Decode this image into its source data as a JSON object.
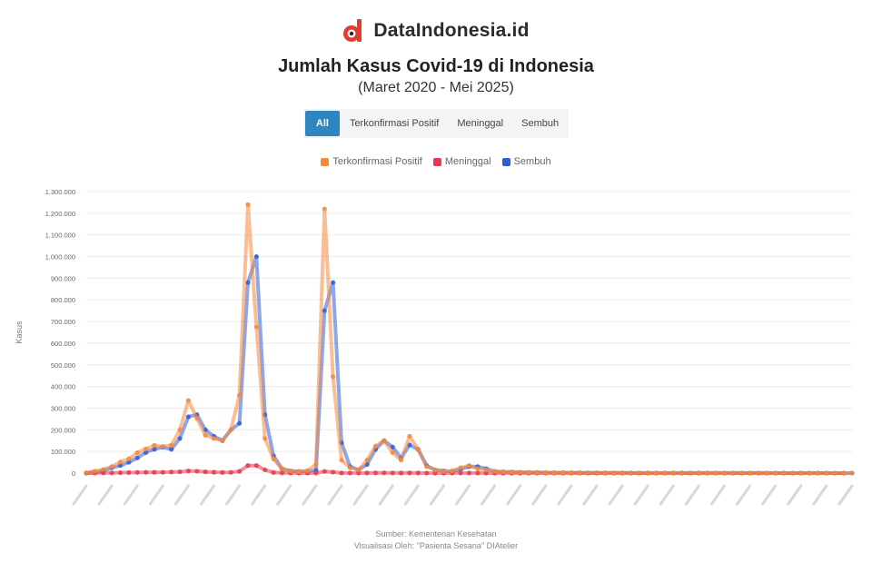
{
  "brand": {
    "name": "DataIndonesia.id",
    "logo_letter": "d",
    "logo_color": "#e23c2f"
  },
  "title": "Jumlah Kasus Covid-19 di Indonesia",
  "subtitle": "(Maret 2020 - Mei 2025)",
  "tabs": [
    {
      "label": "All",
      "active": true
    },
    {
      "label": "Terkonfirmasi Positif",
      "active": false
    },
    {
      "label": "Meninggal",
      "active": false
    },
    {
      "label": "Sembuh",
      "active": false
    }
  ],
  "footer": {
    "source": "Sumber: Kementerian Kesehatan",
    "visual": "Visualisasi Oleh: \"Pasienta Sesana\" DIAtelier"
  },
  "chart_data": {
    "type": "line",
    "ylabel": "Kasus",
    "ylim": [
      0,
      1300000
    ],
    "y_ticks": [
      "0",
      "100.000",
      "200.000",
      "300.000",
      "400.000",
      "500.000",
      "600.000",
      "700.000",
      "800.000",
      "900.000",
      "1.000.000",
      "1.100.000",
      "1.200.000",
      "1.300.000"
    ],
    "grid": true,
    "legend": "top-center",
    "series": [
      {
        "name": "Terkonfirmasi Positif",
        "color": "#f5893d",
        "values": [
          1500,
          9000,
          17000,
          30000,
          51000,
          66000,
          94000,
          112000,
          128000,
          123000,
          129000,
          200000,
          335000,
          253000,
          175000,
          160000,
          150000,
          200000,
          360000,
          1240000,
          675000,
          160000,
          65000,
          20000,
          10000,
          7000,
          11000,
          40000,
          1220000,
          445000,
          60000,
          25000,
          15000,
          60000,
          125000,
          150000,
          95000,
          60000,
          170000,
          110000,
          30000,
          15000,
          8000,
          10000,
          25000,
          35000,
          20000,
          15000,
          8000,
          6000,
          5000,
          4000,
          3000,
          3000,
          2000,
          2000,
          2000,
          1500,
          1500,
          1000,
          1000,
          1000,
          800,
          700,
          600,
          600,
          600,
          500,
          500,
          500,
          400,
          400,
          400,
          300,
          300,
          300,
          300,
          300,
          250,
          250,
          250,
          200,
          200,
          200,
          200,
          200,
          200,
          200,
          200,
          200,
          200
        ]
      },
      {
        "name": "Meninggal",
        "color": "#e5394e",
        "values": [
          100,
          400,
          900,
          1200,
          1900,
          2700,
          3300,
          3600,
          3700,
          4000,
          5000,
          6000,
          10000,
          8700,
          5800,
          4200,
          3000,
          3500,
          8000,
          35000,
          35000,
          15000,
          3000,
          1000,
          300,
          150,
          200,
          500,
          7600,
          4500,
          800,
          300,
          200,
          600,
          1200,
          1300,
          800,
          500,
          1000,
          600,
          200,
          100,
          80,
          150,
          400,
          500,
          300,
          200,
          100,
          80,
          60,
          50,
          40,
          30,
          25,
          20,
          20,
          15,
          15,
          10,
          10,
          10,
          10,
          10,
          10,
          10,
          10,
          5,
          5,
          5,
          5,
          5,
          5,
          5,
          5,
          5,
          5,
          5,
          5,
          5,
          5,
          5,
          5,
          5,
          5,
          5,
          5,
          5,
          5,
          5
        ]
      },
      {
        "name": "Sembuh",
        "color": "#2f5fd6",
        "values": [
          100,
          5000,
          10000,
          25000,
          35000,
          50000,
          70000,
          95000,
          110000,
          120000,
          110000,
          160000,
          260000,
          270000,
          200000,
          170000,
          150000,
          200000,
          230000,
          880000,
          1000000,
          270000,
          80000,
          20000,
          10000,
          8000,
          9000,
          12000,
          750000,
          880000,
          140000,
          30000,
          15000,
          40000,
          110000,
          150000,
          120000,
          70000,
          130000,
          110000,
          35000,
          15000,
          10000,
          8000,
          18000,
          30000,
          30000,
          20000,
          8000,
          6000,
          5000,
          4000,
          3000,
          3000,
          2000,
          2000,
          2000,
          1500,
          1500,
          1000,
          1000,
          1000,
          800,
          700,
          600,
          600,
          600,
          500,
          500,
          500,
          400,
          400,
          400,
          300,
          300,
          300,
          300,
          300,
          250,
          250,
          250,
          200,
          200,
          200,
          200,
          200,
          200,
          200,
          200,
          200,
          200
        ]
      }
    ]
  }
}
